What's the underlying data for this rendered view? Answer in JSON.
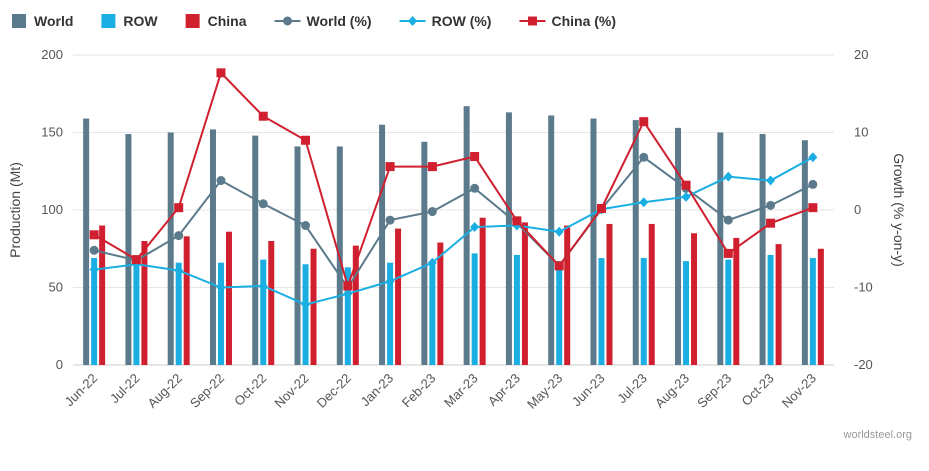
{
  "chart_data": {
    "type": "bar+line",
    "categories": [
      "Jun-22",
      "Jul-22",
      "Aug-22",
      "Sep-22",
      "Oct-22",
      "Nov-22",
      "Dec-22",
      "Jan-23",
      "Feb-23",
      "Mar-23",
      "Apr-23",
      "May-23",
      "Jun-23",
      "Jul-23",
      "Aug-23",
      "Sep-23",
      "Oct-23",
      "Nov-23"
    ],
    "bar_series": [
      {
        "name": "World",
        "color": "#5b7a8b",
        "values": [
          159,
          149,
          150,
          152,
          148,
          141,
          141,
          155,
          144,
          167,
          163,
          161,
          159,
          158,
          153,
          150,
          149,
          145
        ]
      },
      {
        "name": "ROW",
        "color": "#1aaee2",
        "values": [
          69,
          68,
          66,
          66,
          68,
          65,
          63,
          66,
          65,
          72,
          71,
          67,
          69,
          69,
          67,
          68,
          71,
          69
        ]
      },
      {
        "name": "China",
        "color": "#d0202f",
        "values": [
          90,
          80,
          83,
          86,
          80,
          75,
          77,
          88,
          79,
          95,
          92,
          90,
          91,
          91,
          85,
          82,
          78,
          75
        ]
      }
    ],
    "line_series": [
      {
        "name": "World (%)",
        "color": "#5b7a8b",
        "marker": "circle",
        "values": [
          -5.2,
          -6.5,
          -3.3,
          3.8,
          0.8,
          -2,
          -10,
          -1.3,
          -0.2,
          2.8,
          -1.7,
          -7.2,
          0.1,
          6.8,
          2.8,
          -1.3,
          0.6,
          3.3
        ]
      },
      {
        "name": "ROW (%)",
        "color": "#1aaee2",
        "marker": "diamond",
        "values": [
          -7.7,
          -7,
          -7.8,
          -10,
          -9.8,
          -12.2,
          -10.8,
          -9.2,
          -6.8,
          -2.2,
          -2,
          -2.8,
          0.1,
          1,
          1.7,
          4.3,
          3.8,
          6.8
        ]
      },
      {
        "name": "China (%)",
        "color": "#d0202f",
        "marker": "square",
        "values": [
          -3.2,
          -6.4,
          0.3,
          17.7,
          12.1,
          9,
          -9.8,
          5.6,
          5.6,
          6.9,
          -1.4,
          -7.2,
          0.2,
          11.4,
          3.2,
          -5.6,
          -1.7,
          0.3
        ]
      }
    ],
    "y_left": {
      "label": "Production (Mt)",
      "min": 0,
      "max": 200,
      "ticks": [
        0,
        50,
        100,
        150,
        200
      ]
    },
    "y_right": {
      "label": "Growth (% y-on-y)",
      "min": -20,
      "max": 20,
      "ticks": [
        -20,
        -10,
        0,
        10,
        20
      ]
    },
    "grid": "horizontal",
    "legend_position": "top-left"
  },
  "credit": "worldsteel.org"
}
